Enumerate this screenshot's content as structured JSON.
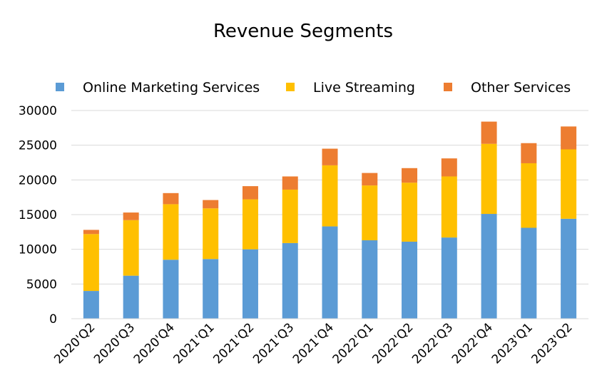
{
  "chart_data": {
    "type": "bar",
    "stacked": true,
    "title": "Revenue Segments",
    "xlabel": "",
    "ylabel": "",
    "ylim": [
      0,
      30000
    ],
    "yticks": [
      "0",
      "5000",
      "10000",
      "15000",
      "20000",
      "25000",
      "30000"
    ],
    "grid": true,
    "legend_position": "top",
    "categories": [
      "2020'Q2",
      "2020'Q3",
      "2020'Q4",
      "2021'Q1",
      "2021'Q2",
      "2021'Q3",
      "2021'Q4",
      "2022'Q1",
      "2022'Q2",
      "2022'Q3",
      "2022'Q4",
      "2023'Q1",
      "2023'Q2"
    ],
    "series": [
      {
        "name": "Online Marketing Services",
        "color": "#5b9bd5",
        "values": [
          4000,
          6200,
          8500,
          8600,
          10000,
          10900,
          13300,
          11300,
          11100,
          11700,
          15100,
          13100,
          14400
        ]
      },
      {
        "name": "Live Streaming",
        "color": "#ffc000",
        "values": [
          8200,
          8000,
          8000,
          7300,
          7200,
          7700,
          8800,
          7900,
          8500,
          8800,
          10100,
          9300,
          10000
        ]
      },
      {
        "name": "Other Services",
        "color": "#ed7d31",
        "values": [
          600,
          1100,
          1600,
          1200,
          1900,
          1900,
          2400,
          1800,
          2100,
          2600,
          3200,
          2900,
          3300
        ]
      }
    ]
  }
}
